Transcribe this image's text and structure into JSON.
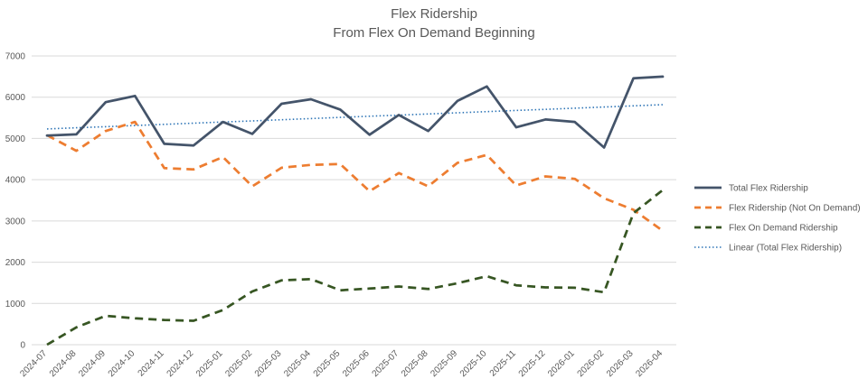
{
  "chart_data": {
    "type": "line",
    "title": "Flex Ridership",
    "subtitle": "From Flex On Demand Beginning",
    "xlabel": "",
    "ylabel": "",
    "ylim": [
      0,
      7000
    ],
    "yticks": [
      0,
      1000,
      2000,
      3000,
      4000,
      5000,
      6000,
      7000
    ],
    "grid": true,
    "legend_position": "right",
    "x": [
      "2024-07",
      "2024-08",
      "2024-09",
      "2024-10",
      "2024-11",
      "2024-12",
      "2025-01",
      "2025-02",
      "2025-03",
      "2025-04",
      "2025-05",
      "2025-06",
      "2025-07",
      "2025-08",
      "2025-09",
      "2025-10",
      "2025-11",
      "2025-12",
      "2026-01",
      "2026-02",
      "2026-03",
      "2026-04"
    ],
    "series": [
      {
        "name": "Total Flex Ridership",
        "color": "#44546a",
        "style": "solid",
        "values": [
          5070,
          5100,
          5880,
          6030,
          4870,
          4830,
          5400,
          5110,
          5840,
          5950,
          5700,
          5090,
          5570,
          5180,
          5910,
          6260,
          5270,
          5460,
          5400,
          4780,
          6460,
          6500
        ]
      },
      {
        "name": "Flex Ridership (Not On Demand)",
        "color": "#ed7d31",
        "style": "dashed",
        "values": [
          5080,
          4700,
          5180,
          5400,
          4280,
          4250,
          4550,
          3840,
          4290,
          4360,
          4380,
          3720,
          4160,
          3840,
          4410,
          4600,
          3860,
          4080,
          4020,
          3550,
          3270,
          2760
        ]
      },
      {
        "name": "Flex On Demand Ridership",
        "color": "#375623",
        "style": "dashed",
        "values": [
          0,
          420,
          700,
          640,
          600,
          580,
          840,
          1290,
          1560,
          1590,
          1320,
          1360,
          1410,
          1350,
          1490,
          1660,
          1440,
          1390,
          1380,
          1270,
          3190,
          3750
        ]
      },
      {
        "name": "Linear (Total Flex Ridership)",
        "color": "#2e75b6",
        "style": "dotted",
        "trendline_of": "Total Flex Ridership",
        "values": [
          5230,
          5258,
          5286,
          5314,
          5342,
          5370,
          5398,
          5426,
          5454,
          5482,
          5510,
          5538,
          5566,
          5594,
          5622,
          5650,
          5678,
          5706,
          5734,
          5762,
          5790,
          5818
        ]
      }
    ]
  }
}
